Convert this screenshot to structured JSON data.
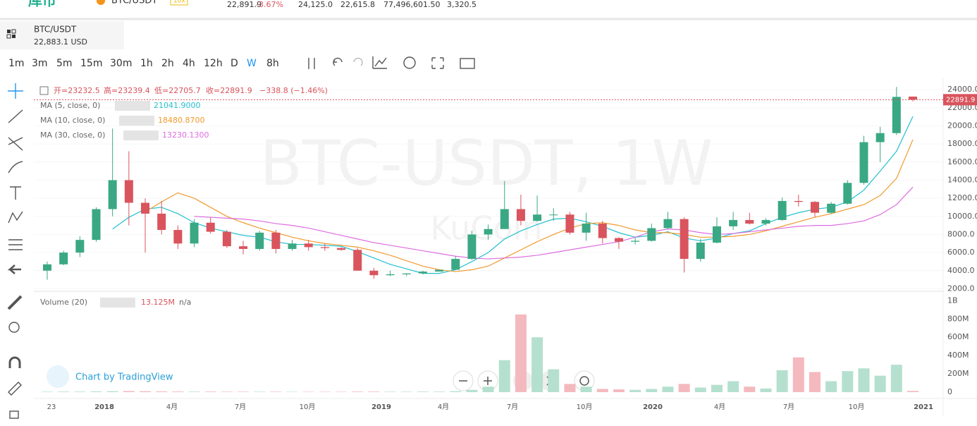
{
  "header": {
    "logo": "库币",
    "pair": "BTC/USDT",
    "leverage": "10x",
    "stats": [
      "22,891.9",
      "-3.67%",
      "24,125.0",
      "22,615.8",
      "77,496,601.50",
      "3,320.5"
    ]
  },
  "symbol": {
    "pair": "BTC/USDT",
    "price": "22,883.1 USD"
  },
  "intervals": [
    "1m",
    "3m",
    "5m",
    "15m",
    "30m",
    "1h",
    "2h",
    "4h",
    "12h",
    "D",
    "W",
    "8h"
  ],
  "active_interval": "W",
  "chart": {
    "type": "candlestick",
    "watermark": "BTC-USDT, 1W",
    "watermark_sub": "KuCoin",
    "branding": "Chart by TradingView",
    "legend": [
      "开=23232.5",
      "高=23239.4",
      "低=22705.7",
      "收=22891.9",
      "−338.8 (−1.46%)"
    ],
    "up_color": "#3aa884",
    "down_color": "#d9545d",
    "x_labels": [
      "23",
      "2018",
      "4月",
      "7月",
      "10月",
      "2019",
      "4月",
      "7月",
      "10月",
      "2020",
      "4月",
      "7月",
      "10月",
      "2021"
    ],
    "ylim": [
      1800,
      25100
    ],
    "yticks": [
      {
        "value": 2000,
        "label": "2000.0"
      },
      {
        "value": 4000,
        "label": "4000.0"
      },
      {
        "value": 6000,
        "label": "6000.0"
      },
      {
        "value": 8000,
        "label": "8000.0"
      },
      {
        "value": 10000,
        "label": "10000.0"
      },
      {
        "value": 12000,
        "label": "12000.0"
      },
      {
        "value": 14000,
        "label": "14000.0"
      },
      {
        "value": 16000,
        "label": "16000.0"
      },
      {
        "value": 18000,
        "label": "18000.0"
      },
      {
        "value": 20000,
        "label": "20000.0"
      },
      {
        "value": 22000,
        "label": "22000.0"
      },
      {
        "value": 24000,
        "label": "24000.0"
      }
    ],
    "candles": [
      [
        4000,
        5000,
        3000,
        4700
      ],
      [
        4700,
        6200,
        4600,
        6000
      ],
      [
        6000,
        7800,
        5500,
        7400
      ],
      [
        7400,
        11000,
        7200,
        10800
      ],
      [
        10800,
        19700,
        10000,
        14000
      ],
      [
        14000,
        17200,
        9000,
        11500
      ],
      [
        11500,
        12000,
        6000,
        10300
      ],
      [
        10300,
        11700,
        8000,
        8500
      ],
      [
        8500,
        9000,
        6400,
        7000
      ],
      [
        7000,
        9700,
        6600,
        9300
      ],
      [
        9300,
        9900,
        8100,
        8300
      ],
      [
        8300,
        8500,
        6500,
        6700
      ],
      [
        6700,
        7300,
        5800,
        6400
      ],
      [
        6400,
        8400,
        6200,
        8200
      ],
      [
        8200,
        8500,
        5900,
        6400
      ],
      [
        6400,
        7400,
        6200,
        7000
      ],
      [
        7000,
        7400,
        6200,
        6600
      ],
      [
        6600,
        7000,
        6200,
        6500
      ],
      [
        6500,
        6600,
        6200,
        6300
      ],
      [
        6300,
        6500,
        4000,
        4000
      ],
      [
        4000,
        4300,
        3100,
        3500
      ],
      [
        3500,
        4000,
        3400,
        3600
      ],
      [
        3600,
        3700,
        3400,
        3700
      ],
      [
        3700,
        4000,
        3600,
        3900
      ],
      [
        3900,
        4100,
        3900,
        4100
      ],
      [
        4100,
        5600,
        4100,
        5300
      ],
      [
        5300,
        8400,
        5200,
        8000
      ],
      [
        8000,
        9100,
        7400,
        8600
      ],
      [
        8600,
        13900,
        8600,
        10800
      ],
      [
        10800,
        12400,
        9000,
        9500
      ],
      [
        9500,
        12300,
        9400,
        10200
      ],
      [
        10200,
        10900,
        9500,
        10200
      ],
      [
        10200,
        10500,
        8000,
        8200
      ],
      [
        8200,
        10400,
        7300,
        9200
      ],
      [
        9200,
        9500,
        7000,
        7600
      ],
      [
        7600,
        7700,
        6400,
        7200
      ],
      [
        7200,
        7700,
        6900,
        7300
      ],
      [
        7300,
        9200,
        7200,
        8700
      ],
      [
        8700,
        10500,
        8600,
        9700
      ],
      [
        9700,
        9900,
        3800,
        5300
      ],
      [
        5300,
        7500,
        5000,
        7100
      ],
      [
        7100,
        9900,
        7000,
        8900
      ],
      [
        8900,
        10500,
        8500,
        9600
      ],
      [
        9600,
        10400,
        9100,
        9200
      ],
      [
        9200,
        9800,
        9000,
        9600
      ],
      [
        9600,
        12100,
        9500,
        11700
      ],
      [
        11700,
        12400,
        11100,
        11600
      ],
      [
        11600,
        11700,
        9900,
        10400
      ],
      [
        10400,
        11600,
        10300,
        11400
      ],
      [
        11400,
        14000,
        11300,
        13700
      ],
      [
        13700,
        18900,
        13500,
        18200
      ],
      [
        18200,
        19900,
        16000,
        19200
      ],
      [
        19200,
        24300,
        19000,
        23200
      ],
      [
        23232.5,
        23239.4,
        22705.7,
        22891.9
      ]
    ],
    "series": [
      {
        "name": "MA (5, close, 0)",
        "value_label": "21041.9000",
        "color": "#22bfd0",
        "values": [
          null,
          null,
          null,
          null,
          8600,
          9900,
          10800,
          11000,
          10300,
          9300,
          8700,
          8300,
          7900,
          7700,
          7200,
          6900,
          6900,
          6800,
          6700,
          6100,
          5400,
          4700,
          4200,
          3700,
          3700,
          4100,
          5000,
          6000,
          7500,
          8400,
          9100,
          9700,
          9800,
          9400,
          8900,
          8200,
          7700,
          7900,
          8300,
          7600,
          7300,
          7600,
          8100,
          8400,
          9200,
          9900,
          10400,
          10800,
          11000,
          11600,
          12900,
          15000,
          17200,
          21041.9
        ]
      },
      {
        "name": "MA (10, close, 0)",
        "value_label": "18480.8700",
        "color": "#f09a2e",
        "values": [
          null,
          null,
          null,
          null,
          null,
          null,
          10500,
          11600,
          12600,
          12000,
          11000,
          10000,
          9300,
          8700,
          8200,
          7700,
          7300,
          7000,
          6800,
          6600,
          6200,
          5700,
          5100,
          4500,
          4100,
          3900,
          4100,
          4500,
          5400,
          6300,
          7200,
          8000,
          8700,
          9200,
          9300,
          9000,
          8500,
          8200,
          8200,
          8000,
          7700,
          7700,
          7800,
          8000,
          8400,
          8900,
          9400,
          9900,
          10300,
          10800,
          11300,
          12300,
          14200,
          18480.87
        ]
      },
      {
        "name": "MA (30, close, 0)",
        "value_label": "13230.1300",
        "color": "#dd6de0",
        "values": [
          null,
          null,
          null,
          null,
          null,
          null,
          null,
          null,
          null,
          10000,
          9900,
          9800,
          9700,
          9500,
          9200,
          9000,
          8700,
          8300,
          7900,
          7500,
          7100,
          6800,
          6500,
          6200,
          5900,
          5600,
          5400,
          5300,
          5400,
          5500,
          5700,
          6000,
          6300,
          6600,
          6900,
          7200,
          7700,
          8300,
          8600,
          8500,
          8200,
          8000,
          8100,
          8300,
          8500,
          8700,
          8900,
          9000,
          9000,
          9200,
          9500,
          10200,
          11300,
          13230.13
        ]
      }
    ],
    "volume": {
      "name": "Volume (20)",
      "value_label": "13.125M",
      "extra": "n/a",
      "up_color": "#b5e0cf",
      "down_color": "#f4b9be",
      "ylim": [
        0,
        1080
      ],
      "yticks": [
        0,
        {
          "value": 200,
          "label": "200M"
        },
        {
          "value": 400,
          "label": "400M"
        },
        {
          "value": 600,
          "label": "600M"
        },
        {
          "value": 800,
          "label": "800M"
        },
        {
          "value": 1000,
          "label": "1B"
        }
      ],
      "values": [
        5,
        6,
        6,
        8,
        10,
        12,
        10,
        8,
        7,
        6,
        6,
        5,
        5,
        5,
        5,
        4,
        4,
        4,
        4,
        6,
        6,
        5,
        5,
        6,
        6,
        10,
        25,
        60,
        350,
        850,
        600,
        250,
        90,
        60,
        35,
        30,
        25,
        35,
        60,
        90,
        50,
        80,
        120,
        60,
        40,
        240,
        380,
        220,
        120,
        230,
        260,
        180,
        300,
        13.125
      ]
    }
  }
}
